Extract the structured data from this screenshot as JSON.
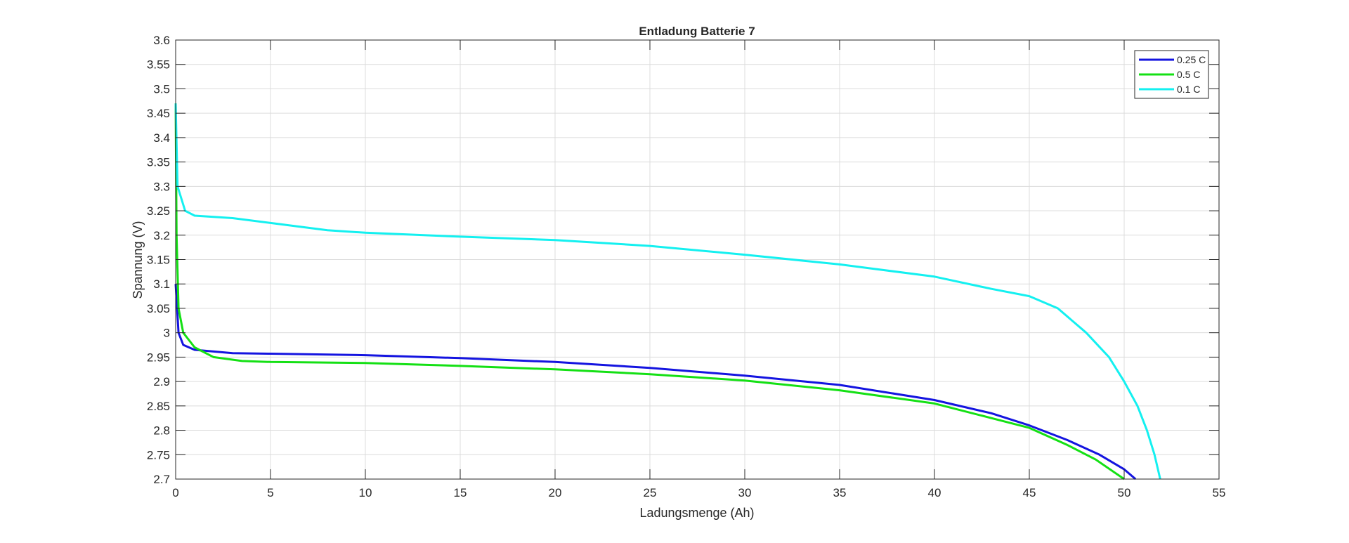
{
  "chart_data": {
    "type": "line",
    "title": "Entladung Batterie 7",
    "xlabel": "Ladungsmenge (Ah)",
    "ylabel": "Spannung (V)",
    "xlim": [
      0,
      55
    ],
    "ylim": [
      2.7,
      3.6
    ],
    "xticks": [
      0,
      5,
      10,
      15,
      20,
      25,
      30,
      35,
      40,
      45,
      50,
      55
    ],
    "yticks": [
      2.7,
      2.75,
      2.8,
      2.85,
      2.9,
      2.95,
      3,
      3.05,
      3.1,
      3.15,
      3.2,
      3.25,
      3.3,
      3.35,
      3.4,
      3.45,
      3.5,
      3.55,
      3.6
    ],
    "grid": true,
    "legend_placement": "top-right",
    "series": [
      {
        "name": "0.25 C",
        "color": "#1414e0",
        "x": [
          0,
          0.15,
          0.4,
          1,
          3,
          5,
          10,
          15,
          20,
          25,
          30,
          35,
          40,
          43,
          45,
          47,
          48.7,
          50,
          50.6
        ],
        "y": [
          3.1,
          3.0,
          2.975,
          2.965,
          2.958,
          2.957,
          2.954,
          2.948,
          2.94,
          2.928,
          2.912,
          2.893,
          2.862,
          2.835,
          2.81,
          2.78,
          2.75,
          2.72,
          2.7
        ]
      },
      {
        "name": "0.5 C",
        "color": "#14e014",
        "x": [
          0,
          0.05,
          0.15,
          0.4,
          1,
          2,
          3.5,
          5,
          10,
          15,
          20,
          25,
          30,
          35,
          40,
          43,
          45,
          47,
          48.5,
          50
        ],
        "y": [
          3.47,
          3.2,
          3.05,
          3.0,
          2.97,
          2.95,
          2.942,
          2.94,
          2.938,
          2.932,
          2.925,
          2.915,
          2.902,
          2.882,
          2.855,
          2.825,
          2.805,
          2.77,
          2.74,
          2.7
        ]
      },
      {
        "name": "0.1 C",
        "color": "#14f0f0",
        "x": [
          0,
          0.1,
          0.5,
          1,
          3,
          5,
          8,
          10,
          15,
          20,
          25,
          30,
          35,
          40,
          43,
          45,
          46.5,
          48,
          49.2,
          50,
          50.7,
          51.2,
          51.6,
          51.9
        ],
        "y": [
          3.47,
          3.3,
          3.25,
          3.24,
          3.235,
          3.225,
          3.21,
          3.205,
          3.197,
          3.19,
          3.178,
          3.16,
          3.14,
          3.115,
          3.09,
          3.075,
          3.05,
          3.0,
          2.95,
          2.9,
          2.85,
          2.8,
          2.75,
          2.7
        ]
      }
    ]
  }
}
